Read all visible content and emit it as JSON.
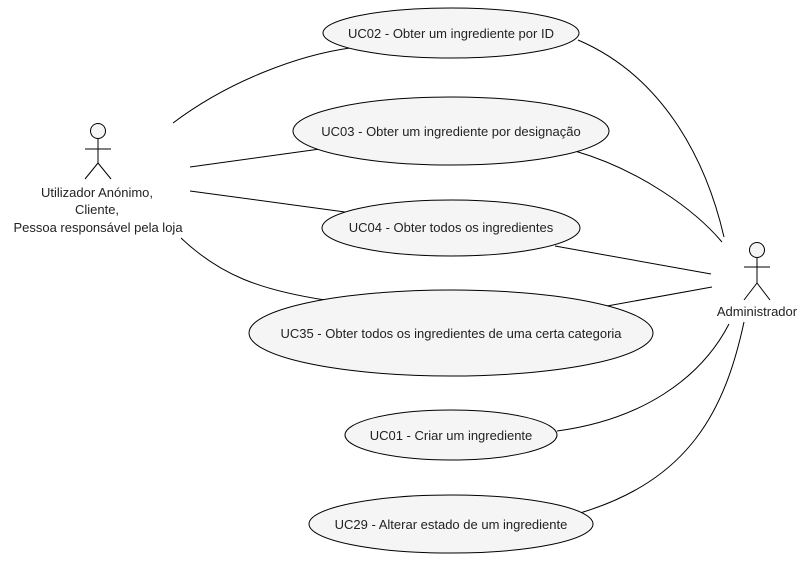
{
  "diagram": {
    "actors": {
      "left": {
        "lines": [
          "Utilizador Anónimo,",
          "Cliente,",
          "Pessoa responsável pela loja"
        ]
      },
      "right": {
        "label": "Administrador"
      }
    },
    "use_cases": [
      {
        "id": "uc02",
        "label": "UC02 - Obter um ingrediente por ID"
      },
      {
        "id": "uc03",
        "label": "UC03 - Obter um ingrediente por designação"
      },
      {
        "id": "uc04",
        "label": "UC04 - Obter todos os ingredientes"
      },
      {
        "id": "uc35",
        "label": "UC35 - Obter todos os ingredientes de uma certa categoria"
      },
      {
        "id": "uc01",
        "label": "UC01 - Criar um ingrediente"
      },
      {
        "id": "uc29",
        "label": "UC29 - Alterar estado de um ingrediente"
      }
    ],
    "style": {
      "ellipse_fill": "#f5f5f5",
      "stroke": "#000000",
      "actor_fill": "#f5f5f5"
    }
  }
}
